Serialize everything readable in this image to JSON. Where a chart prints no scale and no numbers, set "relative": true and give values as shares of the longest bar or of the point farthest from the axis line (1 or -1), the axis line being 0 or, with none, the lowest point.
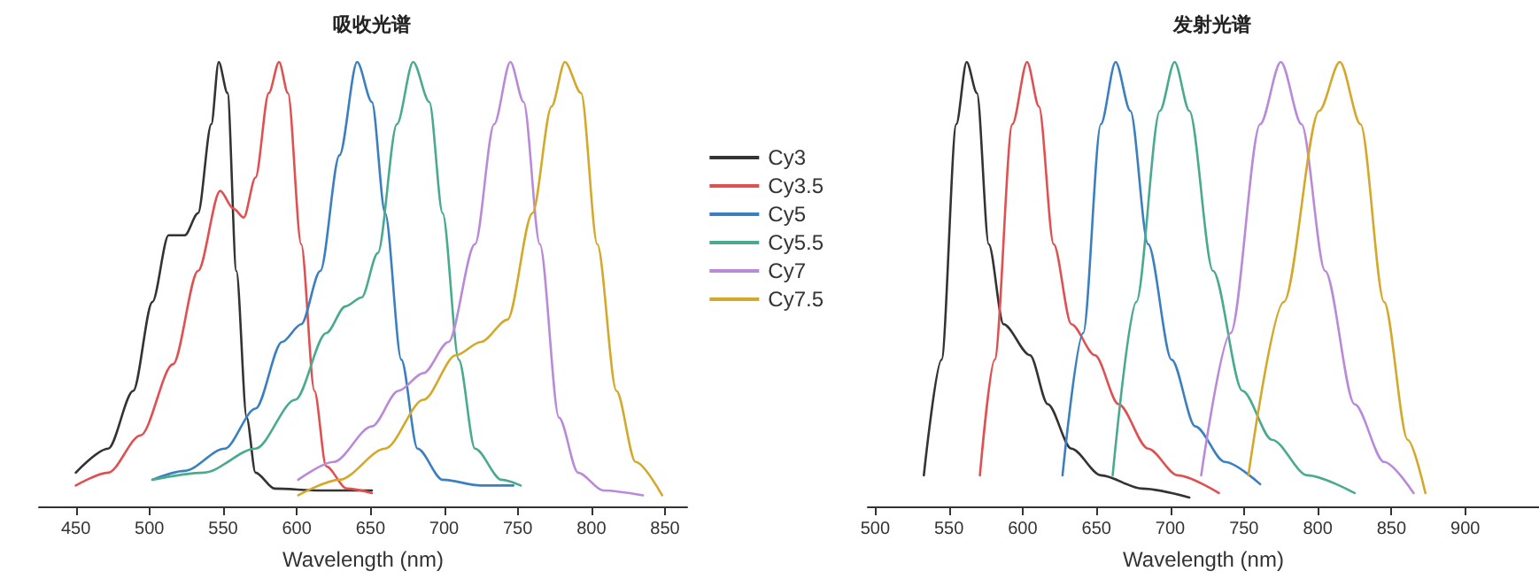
{
  "chart_data": [
    {
      "type": "line",
      "title": "吸收光谱",
      "xlabel": "Wavelength (nm)",
      "relative": true,
      "xlim": [
        425,
        865
      ],
      "xticks": [
        450,
        500,
        550,
        600,
        650,
        700,
        750,
        800,
        850
      ],
      "legend": "right",
      "grid": false,
      "marker": "none",
      "series": [
        {
          "name": "Cy3",
          "color": "#333333",
          "x": [
            450,
            472,
            489,
            502,
            513,
            524,
            533,
            542,
            547,
            553,
            559,
            566,
            572,
            585,
            616,
            651
          ],
          "values": [
            0.076,
            0.13,
            0.26,
            0.46,
            0.61,
            0.61,
            0.66,
            0.86,
            1,
            0.93,
            0.53,
            0.2,
            0.076,
            0.04,
            0.036,
            0.036
          ]
        },
        {
          "name": "Cy3.5",
          "color": "#e05050",
          "x": [
            450,
            472,
            494,
            516,
            533,
            548,
            557,
            564,
            572,
            581,
            588,
            594,
            603,
            612,
            620,
            634,
            651
          ],
          "values": [
            0.047,
            0.076,
            0.16,
            0.32,
            0.53,
            0.71,
            0.67,
            0.65,
            0.74,
            0.93,
            1,
            0.93,
            0.59,
            0.26,
            0.09,
            0.04,
            0.03
          ]
        },
        {
          "name": "Cy5",
          "color": "#3a7fc0",
          "x": [
            502,
            524,
            551,
            572,
            590,
            603,
            616,
            629,
            641,
            651,
            660,
            671,
            682,
            699,
            725,
            747
          ],
          "values": [
            0.06,
            0.08,
            0.13,
            0.22,
            0.37,
            0.41,
            0.53,
            0.79,
            1,
            0.91,
            0.66,
            0.33,
            0.13,
            0.06,
            0.047,
            0.047
          ]
        },
        {
          "name": "Cy5.5",
          "color": "#4aaa8f",
          "x": [
            502,
            537,
            572,
            599,
            620,
            633,
            644,
            655,
            668,
            679,
            690,
            699,
            710,
            721,
            739,
            752
          ],
          "values": [
            0.06,
            0.076,
            0.13,
            0.24,
            0.39,
            0.45,
            0.47,
            0.57,
            0.86,
            1,
            0.91,
            0.66,
            0.33,
            0.13,
            0.06,
            0.047
          ]
        },
        {
          "name": "Cy7",
          "color": "#b88ad8",
          "x": [
            601,
            625,
            651,
            669,
            686,
            703,
            721,
            734,
            745,
            754,
            765,
            778,
            791,
            808,
            835
          ],
          "values": [
            0.06,
            0.1,
            0.18,
            0.26,
            0.3,
            0.37,
            0.59,
            0.86,
            1,
            0.91,
            0.59,
            0.2,
            0.076,
            0.036,
            0.025
          ]
        },
        {
          "name": "Cy7.5",
          "color": "#d4a82a",
          "x": [
            601,
            629,
            660,
            686,
            708,
            725,
            743,
            760,
            773,
            782,
            793,
            804,
            817,
            830,
            848
          ],
          "values": [
            0.025,
            0.06,
            0.13,
            0.24,
            0.34,
            0.37,
            0.42,
            0.66,
            0.9,
            1,
            0.93,
            0.59,
            0.26,
            0.1,
            0.025
          ]
        }
      ]
    },
    {
      "type": "line",
      "title": "发射光谱",
      "xlabel": "Wavelength (nm)",
      "relative": true,
      "xlim": [
        495,
        950
      ],
      "xticks": [
        500,
        550,
        600,
        650,
        700,
        750,
        800,
        850,
        900
      ],
      "grid": false,
      "marker": "none",
      "series": [
        {
          "color": "#333333",
          "x": [
            533,
            545,
            555,
            562,
            569,
            577,
            587,
            605,
            617,
            633,
            653,
            681,
            713
          ],
          "values": [
            0.07,
            0.33,
            0.86,
            1,
            0.93,
            0.59,
            0.41,
            0.34,
            0.23,
            0.13,
            0.07,
            0.04,
            0.02
          ]
        },
        {
          "color": "#e05050",
          "x": [
            571,
            581,
            593,
            603,
            611,
            621,
            633,
            649,
            665,
            685,
            705,
            733
          ],
          "values": [
            0.07,
            0.33,
            0.86,
            1,
            0.9,
            0.59,
            0.41,
            0.34,
            0.23,
            0.13,
            0.07,
            0.03
          ]
        },
        {
          "color": "#3a7fc0",
          "x": [
            627,
            641,
            653,
            663,
            673,
            685,
            701,
            717,
            737,
            761
          ],
          "values": [
            0.07,
            0.39,
            0.86,
            1,
            0.89,
            0.59,
            0.33,
            0.18,
            0.1,
            0.05
          ]
        },
        {
          "color": "#4aaa8f",
          "x": [
            661,
            677,
            693,
            703,
            713,
            729,
            749,
            769,
            793,
            825
          ],
          "values": [
            0.07,
            0.46,
            0.89,
            1,
            0.89,
            0.53,
            0.26,
            0.15,
            0.07,
            0.03
          ]
        },
        {
          "color": "#b88ad8",
          "x": [
            721,
            741,
            761,
            775,
            789,
            805,
            825,
            845,
            865
          ],
          "values": [
            0.07,
            0.39,
            0.86,
            1,
            0.86,
            0.53,
            0.23,
            0.1,
            0.03
          ]
        },
        {
          "color": "#d4a82a",
          "x": [
            753,
            777,
            801,
            815,
            829,
            845,
            861,
            873
          ],
          "values": [
            0.07,
            0.46,
            0.89,
            1,
            0.86,
            0.46,
            0.15,
            0.03
          ]
        }
      ]
    }
  ]
}
